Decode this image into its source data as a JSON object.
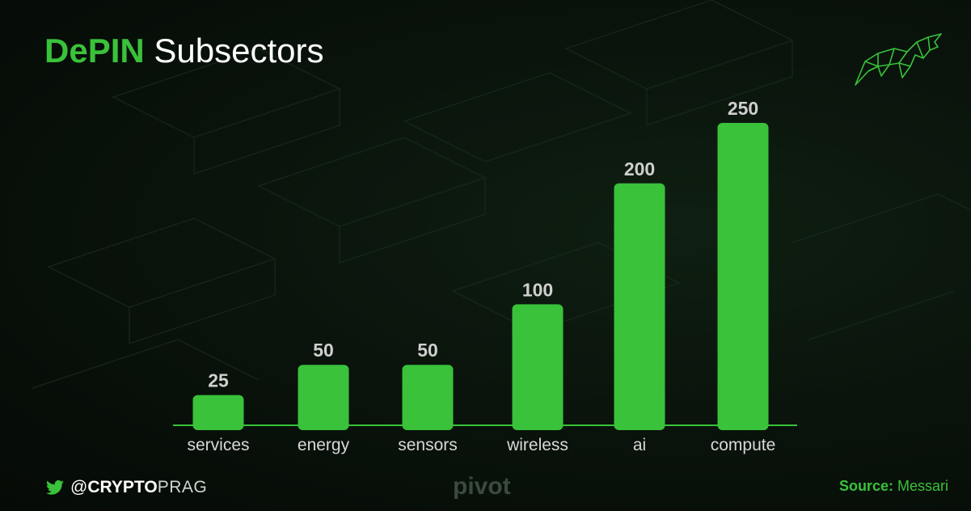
{
  "header": {
    "title_accent": "DePIN",
    "title_rest": "Subsectors"
  },
  "chart_data": {
    "type": "bar",
    "categories": [
      "services",
      "energy",
      "sensors",
      "wireless",
      "ai",
      "compute"
    ],
    "values": [
      25,
      50,
      50,
      100,
      200,
      250
    ],
    "title": "DePIN Subsectors",
    "xlabel": "",
    "ylabel": "",
    "ylim": [
      0,
      250
    ],
    "grid": false,
    "legend": "none",
    "bar_color": "#39c23a",
    "label_color": "#cfcfcf"
  },
  "footer": {
    "handle_prefix": "@",
    "handle_bold": "CRYPTO",
    "handle_light": "PRAG",
    "brand": "pivot",
    "source_label": "Source:",
    "source_value": "Messari"
  },
  "icons": {
    "social": "twitter-bird-icon",
    "logo": "bull-logo-icon"
  }
}
